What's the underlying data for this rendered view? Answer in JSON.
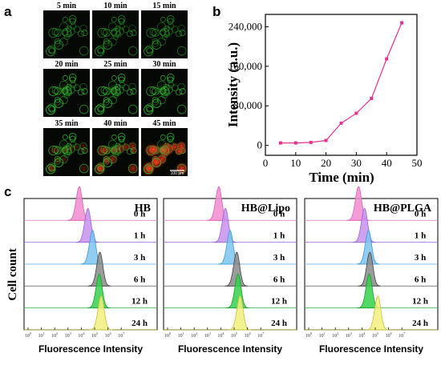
{
  "panel_labels": {
    "a": "a",
    "b": "b",
    "c": "c"
  },
  "panel_a": {
    "time_labels": [
      "5 min",
      "10 min",
      "15 min",
      "20 min",
      "25 min",
      "30 min",
      "35 min",
      "40 min",
      "45 min"
    ],
    "scale_bar": "100 μm",
    "colors": {
      "membrane": "#33cc33",
      "internalized": "#dd3322",
      "background": "#050805"
    }
  },
  "chart_data": [
    {
      "type": "line",
      "panel": "b",
      "x": [
        5,
        10,
        15,
        20,
        25,
        30,
        35,
        40,
        45
      ],
      "y": [
        5000,
        5000,
        6000,
        10000,
        45000,
        65000,
        95000,
        175000,
        248000
      ],
      "xlabel": "Time (min)",
      "ylabel": "Intensity (a.u.)",
      "xticks": [
        "0",
        "10",
        "20",
        "30",
        "40",
        "50"
      ],
      "yticks": [
        "0",
        "80,000",
        "160,000",
        "240,000"
      ],
      "xlim": [
        0,
        50
      ],
      "ylim": [
        -20000,
        265000
      ],
      "color": "#e8318f",
      "marker": "square"
    },
    {
      "type": "area",
      "panel": "c",
      "ylabel": "Cell count",
      "xlabel": "Fluorescence Intensity",
      "x_scale": "log",
      "x_tick_exponents": [
        0,
        1,
        2,
        3,
        4,
        5,
        6,
        7
      ],
      "row_labels": [
        "0 h",
        "1 h",
        "3 h",
        "6 h",
        "12 h",
        "24 h"
      ],
      "row_colors": [
        "#f08cd0",
        "#c792ee",
        "#7dc4ee",
        "#8a8a8a",
        "#35d04a",
        "#f2ee7e"
      ],
      "row_edges": [
        "#e060b0",
        "#a060d8",
        "#3a9ad8",
        "#444444",
        "#15a030",
        "#c8c040"
      ],
      "baseline_colors": [
        "#e088c8",
        "#a070d8",
        "#60a8e0",
        "#707070",
        "#40b050",
        "#c0b830"
      ],
      "subplots": [
        {
          "title": "HB",
          "peak_log10": [
            3.85,
            4.5,
            4.85,
            5.4,
            5.35,
            5.5
          ]
        },
        {
          "title": "HB@Lipo",
          "peak_log10": [
            3.85,
            4.35,
            4.7,
            5.2,
            5.3,
            5.45
          ]
        },
        {
          "title": "HB@PLGA",
          "peak_log10": [
            3.75,
            4.2,
            4.5,
            4.6,
            4.55,
            5.2
          ]
        }
      ]
    }
  ]
}
